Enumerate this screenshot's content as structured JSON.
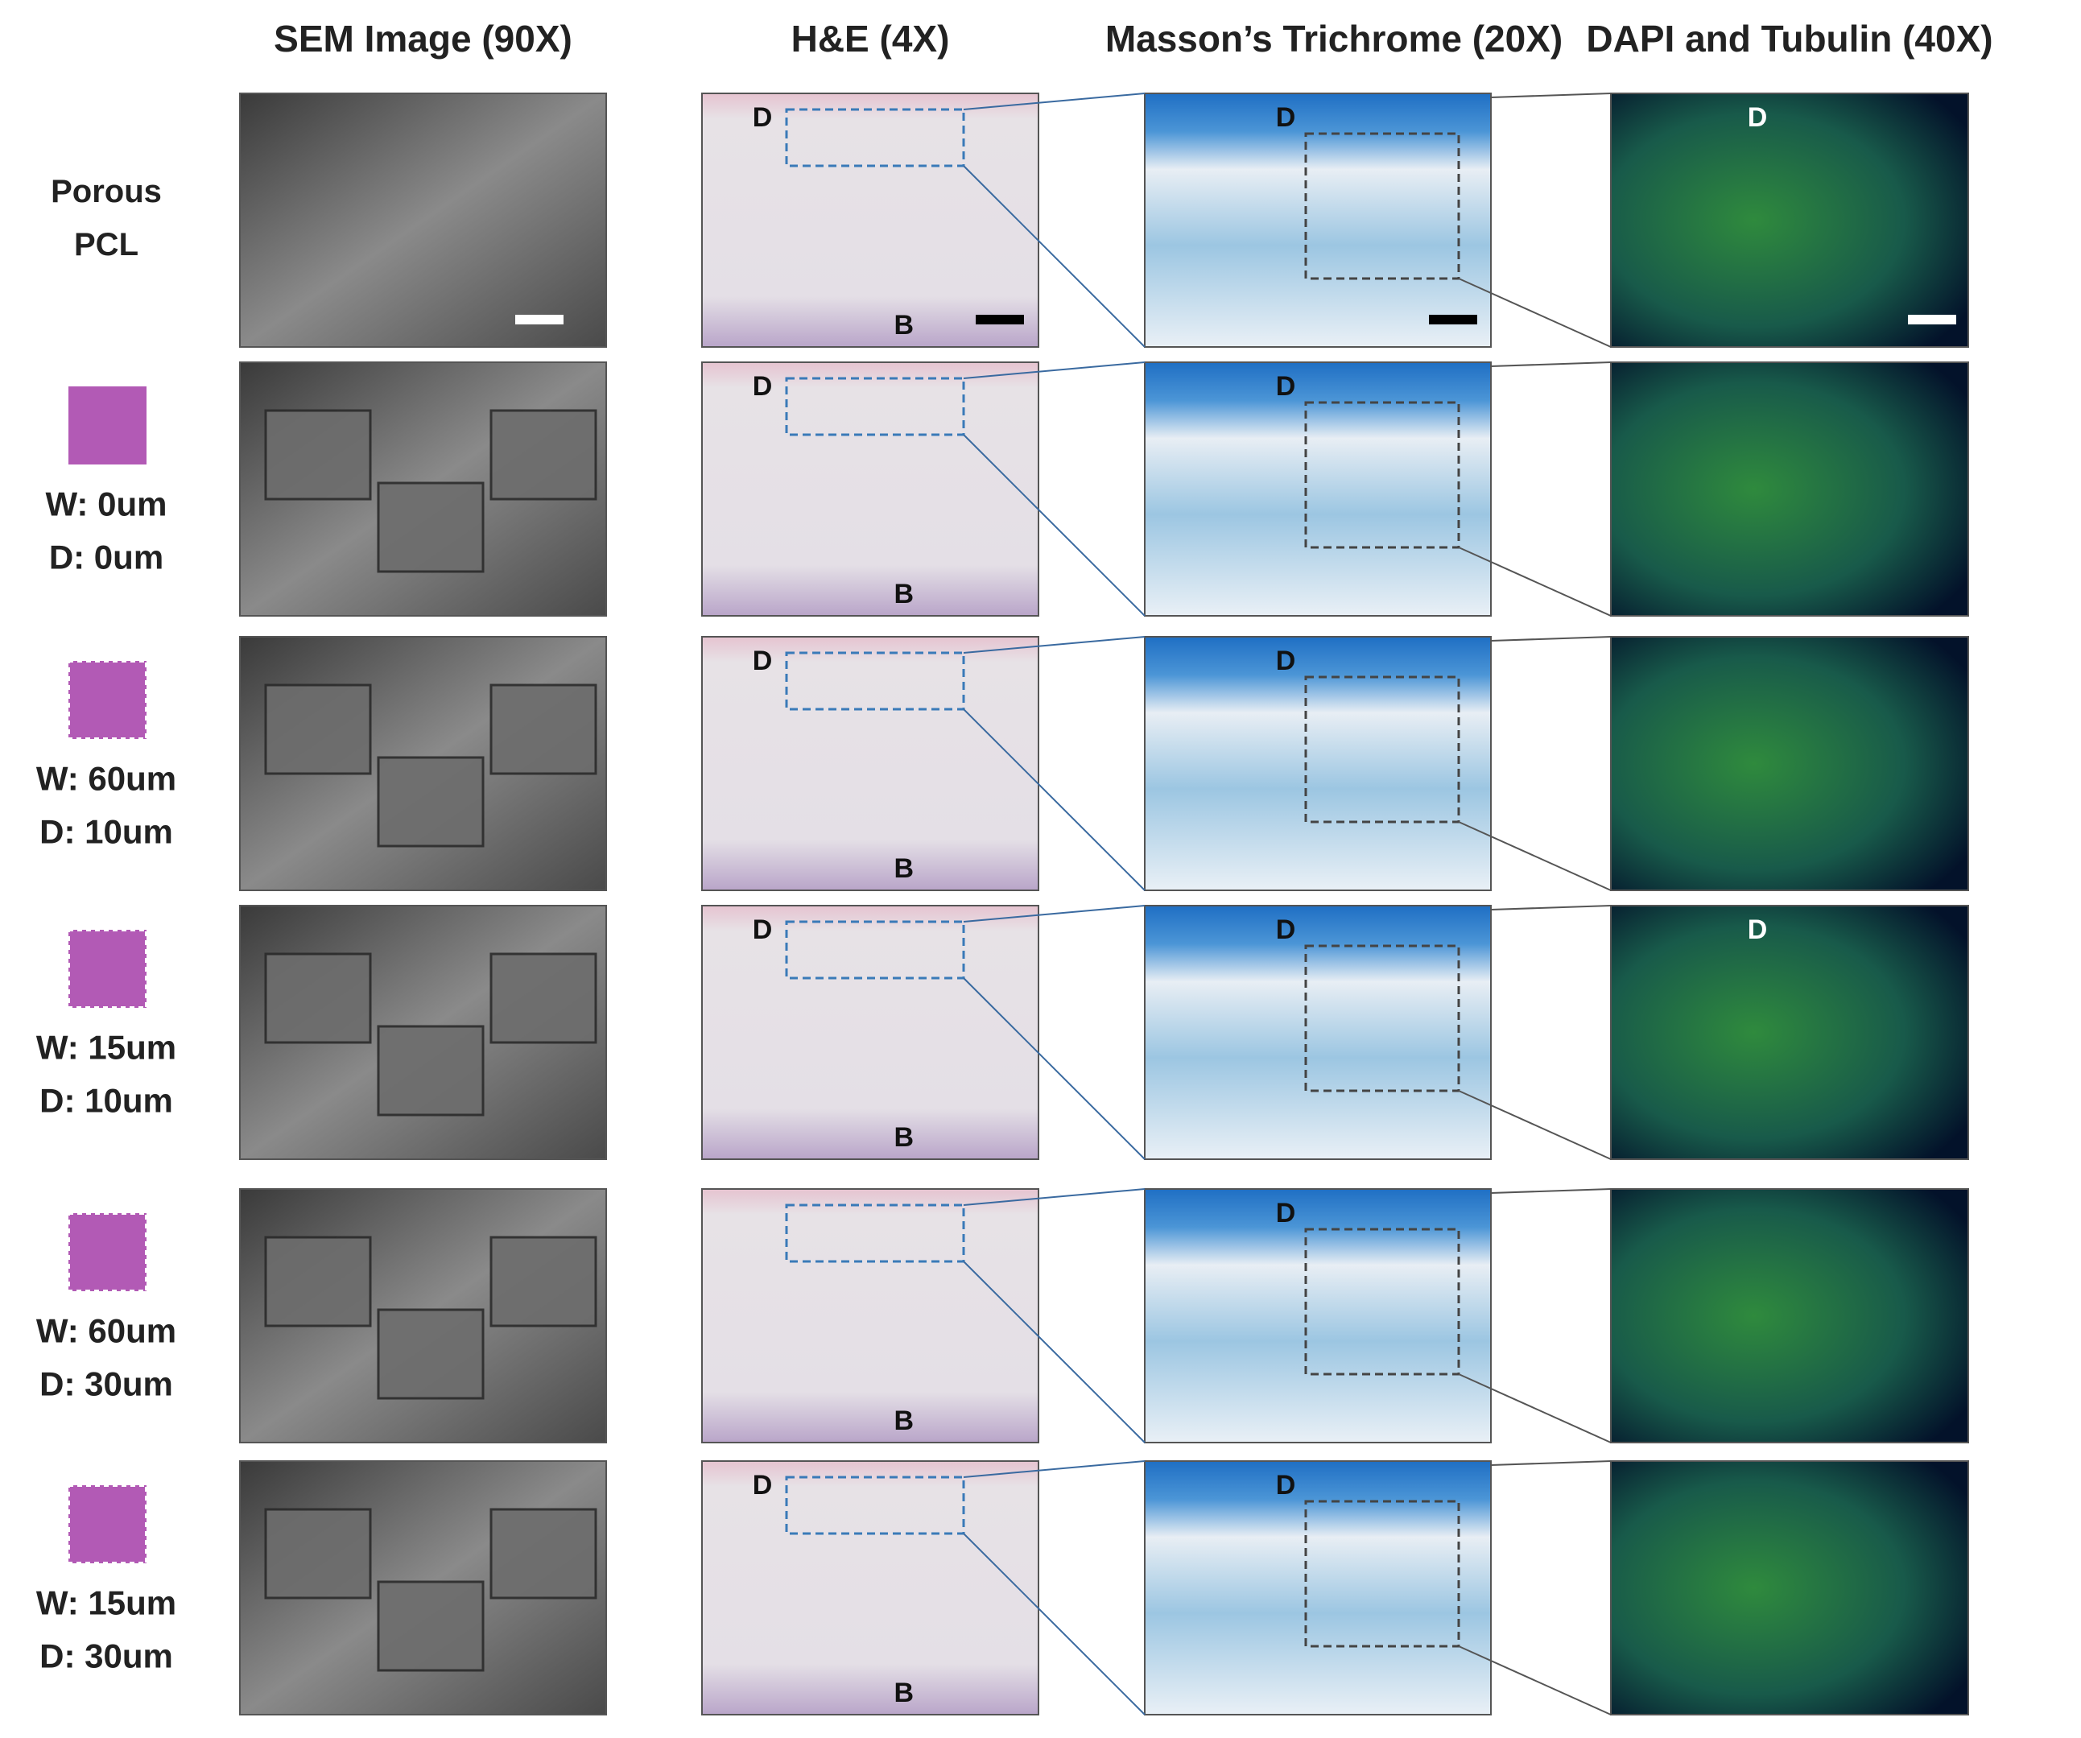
{
  "headers": [
    "SEM Image (90X)",
    "H&E (4X)",
    "Masson’s Trichrome (20X)",
    "DAPI and Tubulin (40X)"
  ],
  "rows": [
    {
      "lines": [
        "Porous",
        "PCL"
      ],
      "he": {
        "top": "D",
        "bottom": "B"
      },
      "mt": {
        "top": "D"
      },
      "dapi": {
        "top": "D"
      }
    },
    {
      "lines": [
        "W: 0um",
        "D: 0um"
      ],
      "he": {
        "top": "D",
        "bottom": "B"
      },
      "mt": {
        "top": "D"
      }
    },
    {
      "lines": [
        "W: 60um",
        "D: 10um"
      ],
      "he": {
        "top": "D",
        "bottom": "B"
      },
      "mt": {
        "top": "D"
      }
    },
    {
      "lines": [
        "W: 15um",
        "D: 10um"
      ],
      "he": {
        "top": "D",
        "bottom": "B"
      },
      "mt": {
        "top": "D"
      },
      "dapi": {
        "top": "D"
      }
    },
    {
      "lines": [
        "W: 60um",
        "D: 30um"
      ],
      "he": {
        "bottom": "B"
      },
      "mt": {
        "top": "D"
      }
    },
    {
      "lines": [
        "W: 15um",
        "D: 30um"
      ],
      "he": {
        "top": "D",
        "bottom": "B"
      },
      "mt": {
        "top": "D"
      }
    }
  ]
}
